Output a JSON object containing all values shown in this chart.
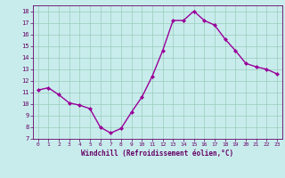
{
  "x": [
    0,
    1,
    2,
    3,
    4,
    5,
    6,
    7,
    8,
    9,
    10,
    11,
    12,
    13,
    14,
    15,
    16,
    17,
    18,
    19,
    20,
    21,
    22,
    23
  ],
  "y": [
    11.2,
    11.4,
    10.8,
    10.1,
    9.9,
    9.6,
    8.0,
    7.5,
    7.9,
    9.3,
    10.6,
    12.4,
    14.6,
    17.2,
    17.2,
    18.0,
    17.2,
    16.8,
    15.6,
    14.6,
    13.5,
    13.2,
    13.0,
    12.6
  ],
  "line_color": "#990099",
  "marker": "D",
  "marker_size": 2.0,
  "bg_color": "#c8ecec",
  "grid_color": "#99ccbb",
  "xlabel": "Windchill (Refroidissement éolien,°C)",
  "xlim": [
    -0.5,
    23.5
  ],
  "ylim": [
    7,
    18.5
  ],
  "yticks": [
    7,
    8,
    9,
    10,
    11,
    12,
    13,
    14,
    15,
    16,
    17,
    18
  ],
  "xticks": [
    0,
    1,
    2,
    3,
    4,
    5,
    6,
    7,
    8,
    9,
    10,
    11,
    12,
    13,
    14,
    15,
    16,
    17,
    18,
    19,
    20,
    21,
    22,
    23
  ],
  "label_color": "#660066",
  "line_width": 1.0
}
